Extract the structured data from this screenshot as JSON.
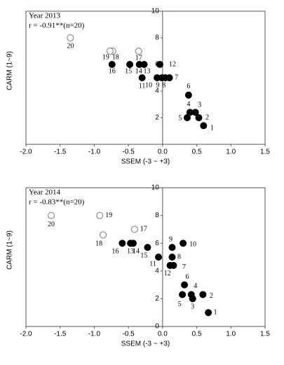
{
  "chart_data": [
    {
      "type": "scatter",
      "title": "Year 2013",
      "subtitle": "r = -0.91**(n=20)",
      "xlabel": "SSEM (-3 ~ +3)",
      "ylabel": "CARM (1~9)",
      "point_labels": [
        "1",
        "2",
        "3",
        "4",
        "5",
        "6",
        "7",
        "8",
        "9",
        "10",
        "11",
        "12",
        "13",
        "14",
        "15",
        "16",
        "17",
        "18",
        "19",
        "20"
      ],
      "x": [
        0.6,
        0.53,
        0.48,
        0.4,
        0.36,
        0.38,
        0.1,
        0.04,
        -0.01,
        -0.08,
        -0.3,
        -0.04,
        -0.27,
        -0.34,
        -0.48,
        -0.74,
        -0.35,
        -0.73,
        -0.77,
        -1.35
      ],
      "y": [
        1.4,
        2.0,
        2.4,
        2.4,
        2.0,
        3.7,
        5,
        5,
        5,
        5,
        5,
        6,
        6,
        6,
        6,
        6,
        7,
        7,
        7,
        8
      ],
      "hollow": [
        false,
        false,
        false,
        false,
        false,
        false,
        false,
        false,
        false,
        false,
        false,
        false,
        false,
        false,
        false,
        false,
        true,
        true,
        true,
        true
      ],
      "color": "#000000",
      "xlim": [
        -2.0,
        1.5
      ],
      "ylim": [
        0,
        10
      ],
      "xticks": [
        {
          "value": -2.0,
          "label": "-2.0"
        },
        -1.5,
        {
          "value": -1.0,
          "label": "-1.0"
        },
        -0.5,
        {
          "value": 0.0,
          "label": "0.0"
        },
        0.5,
        {
          "value": 1.0,
          "label": "1.0"
        },
        1.5
      ],
      "yticks": [
        2,
        4,
        6,
        8,
        10
      ]
    },
    {
      "type": "scatter",
      "title": "Year 2014",
      "subtitle": "r = -0.83**(n=20)",
      "xlabel": "SSEM (-3 ~ +3)",
      "ylabel": "CARM (1~9)",
      "point_labels": [
        "1",
        "2",
        "3",
        "4",
        "5",
        "6",
        "7",
        "8",
        "9",
        "10",
        "11",
        "12",
        "13",
        "14",
        "15",
        "16",
        "17",
        "18",
        "19",
        "20"
      ],
      "x": [
        0.67,
        0.59,
        0.44,
        0.42,
        0.29,
        0.32,
        0.16,
        0.14,
        0.14,
        0.3,
        -0.06,
        0.11,
        -0.47,
        -0.43,
        -0.22,
        -0.59,
        -0.41,
        -0.87,
        -0.92,
        -1.63
      ],
      "y": [
        1.0,
        2.3,
        2.0,
        2.3,
        2.3,
        3.0,
        4.4,
        5.0,
        5.7,
        6.0,
        5.0,
        4.4,
        6,
        6,
        5.7,
        6,
        7.0,
        6.6,
        8,
        8
      ],
      "hollow": [
        false,
        false,
        false,
        false,
        false,
        false,
        false,
        false,
        false,
        false,
        false,
        false,
        false,
        false,
        false,
        false,
        true,
        true,
        true,
        true
      ],
      "color": "#000000",
      "xlim": [
        -2.0,
        1.5
      ],
      "ylim": [
        0,
        10
      ],
      "xticks": [
        {
          "value": -2.0,
          "label": "-2.0"
        },
        -1.5,
        {
          "value": -1.0,
          "label": "-1.0"
        },
        -0.5,
        {
          "value": 0.0,
          "label": "0.0"
        },
        0.5,
        {
          "value": 1.0,
          "label": "1.0"
        },
        1.5
      ],
      "yticks": [
        0,
        2,
        4,
        6,
        8,
        10
      ]
    }
  ]
}
